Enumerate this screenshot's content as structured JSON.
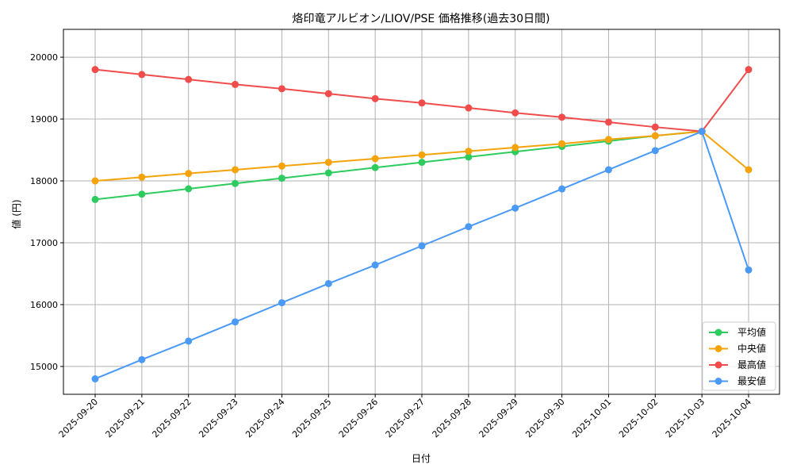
{
  "chart_data": {
    "type": "line",
    "title": "烙印竜アルビオン/LIOV/PSE 価格推移(過去30日間)",
    "xlabel": "日付",
    "ylabel": "値 (円)",
    "ylim": [
      14550,
      20450
    ],
    "yticks": [
      15000,
      16000,
      17000,
      18000,
      19000,
      20000
    ],
    "grid": true,
    "legend_position": "lower-right",
    "categories": [
      "2025-09-20",
      "2025-09-21",
      "2025-09-22",
      "2025-09-23",
      "2025-09-24",
      "2025-09-25",
      "2025-09-26",
      "2025-09-27",
      "2025-09-28",
      "2025-09-29",
      "2025-09-30",
      "2025-10-01",
      "2025-10-02",
      "2025-10-03",
      "2025-10-04"
    ],
    "series": [
      {
        "name": "平均値",
        "color": "#2ecc5e",
        "values": [
          17700,
          17786,
          17872,
          17958,
          18043,
          18129,
          18215,
          18300,
          18386,
          18472,
          18557,
          18643,
          18729,
          18800,
          null
        ]
      },
      {
        "name": "中央値",
        "color": "#f5a30a",
        "values": [
          18000,
          18060,
          18120,
          18180,
          18240,
          18300,
          18360,
          18420,
          18480,
          18540,
          18600,
          18670,
          18730,
          18800,
          18180
        ]
      },
      {
        "name": "最高値",
        "color": "#f04c4c",
        "values": [
          19800,
          19720,
          19640,
          19560,
          19490,
          19410,
          19330,
          19260,
          19180,
          19100,
          19030,
          18950,
          18870,
          18800,
          19800
        ]
      },
      {
        "name": "最安値",
        "color": "#4a9af5",
        "values": [
          14800,
          15110,
          15410,
          15720,
          16030,
          16340,
          16640,
          16950,
          17260,
          17560,
          17870,
          18180,
          18490,
          18800,
          16560
        ]
      }
    ]
  }
}
